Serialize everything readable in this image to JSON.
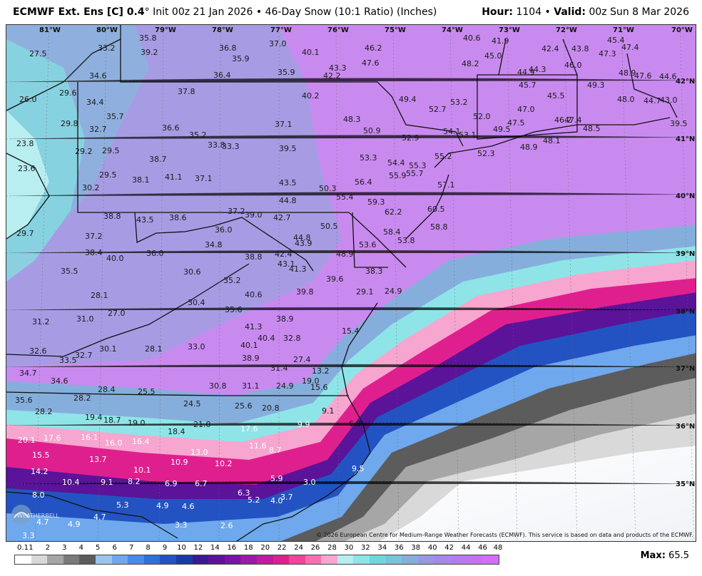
{
  "header": {
    "model_bold": "ECMWF Ext. Ens [C] 0.4",
    "model_rest": "° Init 00z 21 Jan 2026 • 46-Day Snow (10:1 Ratio) (Inches)",
    "hour_label": "Hour:",
    "hour_value": " 1104 • ",
    "valid_label": "Valid:",
    "valid_value": " 00z Sun 8 Mar 2026"
  },
  "longitudes": [
    "81°W",
    "80°W",
    "79°W",
    "78°W",
    "77°W",
    "76°W",
    "75°W",
    "74°W",
    "73°W",
    "72°W",
    "71°W",
    "70°W"
  ],
  "latitudes": [
    "42°N",
    "41°N",
    "40°N",
    "39°N",
    "38°N",
    "37°N",
    "36°N",
    "35°N"
  ],
  "snow_values": [
    "27.5",
    "33.2",
    "35.8",
    "39.2",
    "36.8",
    "35.9",
    "37.0",
    "40.1",
    "46.2",
    "47.6",
    "40.6",
    "41.9",
    "45.0",
    "42.4",
    "43.8",
    "45.4",
    "47.4",
    "47.3",
    "34.6",
    "36.4",
    "35.9",
    "43.3",
    "42.2",
    "48.2",
    "44.9",
    "44.3",
    "46.0",
    "48.9",
    "47.6",
    "44.6",
    "26.0",
    "29.6",
    "37.8",
    "40.2",
    "49.4",
    "53.2",
    "45.7",
    "45.5",
    "49.3",
    "48.0",
    "44.7",
    "43.0",
    "34.4",
    "29.8",
    "35.7",
    "32.7",
    "36.6",
    "35.2",
    "37.1",
    "48.3",
    "50.9",
    "52.7",
    "52.0",
    "47.0",
    "54.1",
    "53.1",
    "49.5",
    "47.5",
    "46.2",
    "47.4",
    "48.5",
    "39.5",
    "23.8",
    "29.2",
    "29.5",
    "38.7",
    "33.8",
    "33.3",
    "39.5",
    "52.9",
    "53.3",
    "55.2",
    "52.3",
    "48.9",
    "48.1",
    "23.6",
    "29.5",
    "38.1",
    "41.1",
    "37.1",
    "54.4",
    "55.3",
    "55.9",
    "55.7",
    "30.2",
    "43.5",
    "50.3",
    "56.4",
    "57.1",
    "55.4",
    "44.8",
    "59.3",
    "62.2",
    "60.5",
    "38.8",
    "43.5",
    "38.6",
    "37.2",
    "39.0",
    "42.7",
    "29.7",
    "37.2",
    "36.0",
    "58.8",
    "58.4",
    "53.8",
    "38.4",
    "40.0",
    "34.8",
    "44.8",
    "43.9",
    "50.5",
    "53.6",
    "36.0",
    "38.8",
    "42.4",
    "48.9",
    "35.5",
    "30.6",
    "41.3",
    "43.1",
    "38.3",
    "35.2",
    "39.6",
    "28.1",
    "40.6",
    "39.8",
    "29.1",
    "24.9",
    "30.4",
    "35.6",
    "27.0",
    "38.9",
    "31.2",
    "31.0",
    "41.3",
    "15.4",
    "40.4",
    "32.8",
    "40.1",
    "32.6",
    "30.1",
    "28.1",
    "33.0",
    "33.5",
    "32.7",
    "38.9",
    "27.4",
    "31.4",
    "34.7",
    "34.6",
    "13.2",
    "19.0",
    "15.6",
    "28.4",
    "25.5",
    "30.8",
    "31.1",
    "24.9",
    "35.6",
    "28.2",
    "24.5",
    "25.6",
    "20.8",
    "9.1",
    "19.4",
    "18.7",
    "19.0",
    "21.0",
    "17.6",
    "9.9",
    "6.0",
    "28.2",
    "16.1",
    "18.4",
    "16.4",
    "11.6",
    "20.1",
    "17.6",
    "16.0",
    "13.0",
    "8.7",
    "15.5",
    "13.7",
    "10.9",
    "10.2",
    "14.2",
    "10.1",
    "9.5",
    "5.9",
    "10.4",
    "9.1",
    "8.2",
    "6.9",
    "6.7",
    "3.0",
    "8.0",
    "6.3",
    "3.7",
    "5.3",
    "5.2",
    "4.0",
    "4.9",
    "4.6",
    "4.7",
    "4.9",
    "4.7",
    "3.3",
    "2.6",
    "3.3"
  ],
  "legend": {
    "ticks": [
      "0.1",
      "1",
      "2",
      "3",
      "4",
      "5",
      "6",
      "7",
      "8",
      "9",
      "10",
      "12",
      "14",
      "16",
      "18",
      "20",
      "22",
      "24",
      "26",
      "28",
      "30",
      "32",
      "34",
      "36",
      "38",
      "40",
      "42",
      "44",
      "46",
      "48"
    ],
    "colors": [
      "#ffffff",
      "#d9d9d9",
      "#a6a6a6",
      "#7a7a7a",
      "#5c5c5c",
      "#9bc4f0",
      "#6fa8ec",
      "#4a8ae8",
      "#2f6fd6",
      "#2353c2",
      "#1a3ba6",
      "#3a1a8f",
      "#5a1399",
      "#7a14a8",
      "#9b1aa6",
      "#c21a9e",
      "#e01f8f",
      "#f2439b",
      "#f76fb0",
      "#f7a6cf",
      "#b7eef0",
      "#8fe4e8",
      "#6fd6dc",
      "#78c4d8",
      "#86aedc",
      "#9698e0",
      "#a489e6",
      "#b47cec",
      "#c473f0",
      "#d36ef5"
    ],
    "max_label": "Max:",
    "max_value": " 65.5"
  },
  "credit": "© 2026 European Centre for Medium-Range Weather Forecasts (ECMWF). This service is based on data and products of the ECMWF.",
  "logo_text": "WEATHERBELL"
}
